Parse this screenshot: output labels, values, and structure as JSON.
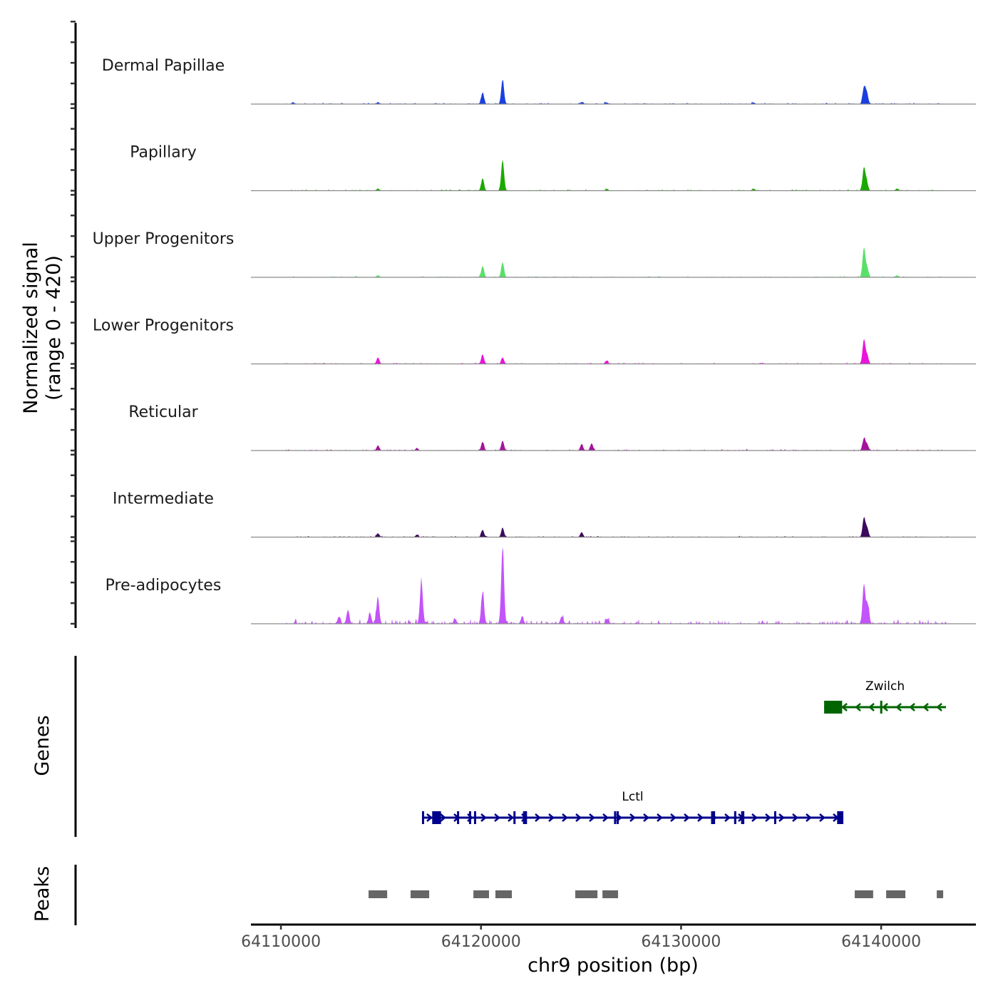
{
  "chart_data": {
    "type": "area",
    "title": "",
    "xlabel": "chr9 position (bp)",
    "ylabel": "Normalized signal",
    "ylabel_sub": "(range 0 - 420)",
    "ylim": [
      0,
      420
    ],
    "xlim": [
      64108500,
      64144700
    ],
    "x_ticks": [
      64110000,
      64120000,
      64130000,
      64140000
    ],
    "x_tick_labels": [
      "64110000",
      "64120000",
      "64130000",
      "64140000"
    ],
    "y_tick_step": 100,
    "series": [
      {
        "name": "Dermal Papillae",
        "color": "#1a3fe0",
        "peaks": [
          [
            64120080,
            55
          ],
          [
            64121080,
            118
          ],
          [
            64139140,
            80
          ],
          [
            64139280,
            55
          ],
          [
            64110600,
            8
          ],
          [
            64114850,
            8
          ],
          [
            64125030,
            10
          ],
          [
            64126280,
            8
          ],
          [
            64133620,
            8
          ]
        ]
      },
      {
        "name": "Papillary",
        "color": "#1ca800",
        "peaks": [
          [
            64120080,
            60
          ],
          [
            64121080,
            150
          ],
          [
            64139140,
            110
          ],
          [
            64139280,
            40
          ],
          [
            64114850,
            10
          ],
          [
            64126280,
            8
          ],
          [
            64133620,
            10
          ],
          [
            64140800,
            10
          ]
        ]
      },
      {
        "name": "Upper Progenitors",
        "color": "#58e068",
        "peaks": [
          [
            64120080,
            55
          ],
          [
            64121080,
            73
          ],
          [
            64139140,
            142
          ],
          [
            64139300,
            45
          ],
          [
            64114850,
            10
          ],
          [
            64140800,
            8
          ]
        ]
      },
      {
        "name": "Lower Progenitors",
        "color": "#ea14dc",
        "peaks": [
          [
            64120080,
            45
          ],
          [
            64121080,
            31
          ],
          [
            64139140,
            118
          ],
          [
            64139300,
            40
          ],
          [
            64114850,
            31
          ],
          [
            64126280,
            15
          ]
        ]
      },
      {
        "name": "Reticular",
        "color": "#a3149b",
        "peaks": [
          [
            64120080,
            42
          ],
          [
            64121080,
            48
          ],
          [
            64139140,
            59
          ],
          [
            64139300,
            30
          ],
          [
            64114850,
            25
          ],
          [
            64125030,
            31
          ],
          [
            64125530,
            35
          ],
          [
            64116800,
            12
          ]
        ]
      },
      {
        "name": "Intermediate",
        "color": "#3b0a5c",
        "peaks": [
          [
            64120080,
            35
          ],
          [
            64121080,
            45
          ],
          [
            64139140,
            94
          ],
          [
            64139300,
            45
          ],
          [
            64114850,
            18
          ],
          [
            64125030,
            24
          ],
          [
            64116800,
            12
          ]
        ]
      },
      {
        "name": "Pre-adipocytes",
        "color": "#c353fa",
        "peaks": [
          [
            64121080,
            371
          ],
          [
            64120080,
            153
          ],
          [
            64117020,
            208
          ],
          [
            64114845,
            128
          ],
          [
            64113350,
            66
          ],
          [
            64114450,
            52
          ],
          [
            64112900,
            35
          ],
          [
            64139140,
            191
          ],
          [
            64139330,
            94
          ],
          [
            64124050,
            35
          ],
          [
            64126300,
            25
          ],
          [
            64122050,
            30
          ],
          [
            64118700,
            22
          ]
        ]
      }
    ]
  },
  "genes_track": {
    "label": "Genes",
    "genes": [
      {
        "name": "Zwilch",
        "strand": "-",
        "color": "#006400",
        "start": 64137150,
        "end": 64143240,
        "exons": [
          [
            64137150,
            64138050
          ],
          [
            64139950,
            64140030
          ]
        ]
      },
      {
        "name": "Lctl",
        "strand": "+",
        "color": "#00008b",
        "start": 64117050,
        "end": 64138110,
        "exons": [
          [
            64117050,
            64117130
          ],
          [
            64117560,
            64118000
          ],
          [
            64118800,
            64118900
          ],
          [
            64119400,
            64119460
          ],
          [
            64119650,
            64119720
          ],
          [
            64121620,
            64121680
          ],
          [
            64122100,
            64122300
          ],
          [
            64126650,
            64126700
          ],
          [
            64126780,
            64126840
          ],
          [
            64131500,
            64131700
          ],
          [
            64132650,
            64132760
          ],
          [
            64133000,
            64133160
          ],
          [
            64134650,
            64134700
          ],
          [
            64137800,
            64138110
          ]
        ]
      }
    ]
  },
  "peaks_track": {
    "label": "Peaks",
    "color": "#666666",
    "regions": [
      [
        64114380,
        64115310
      ],
      [
        64116480,
        64117410
      ],
      [
        64119620,
        64120400
      ],
      [
        64120720,
        64121540
      ],
      [
        64124710,
        64125820
      ],
      [
        64126070,
        64126850
      ],
      [
        64138680,
        64139600
      ],
      [
        64140250,
        64141210
      ],
      [
        64142780,
        64143100
      ]
    ]
  }
}
